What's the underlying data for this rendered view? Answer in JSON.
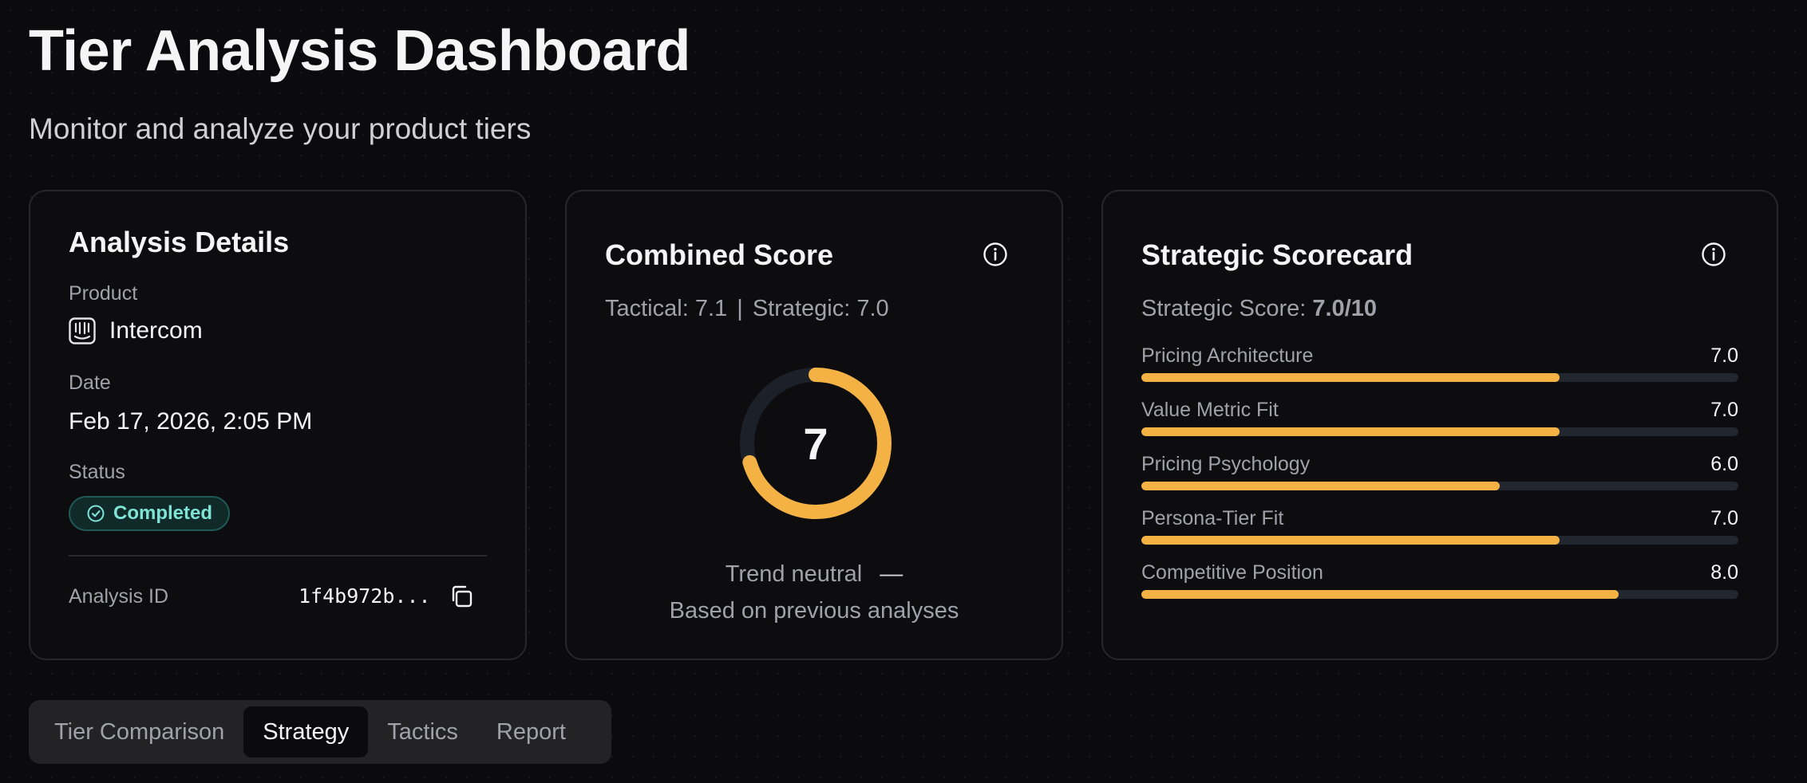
{
  "page": {
    "title": "Tier Analysis Dashboard",
    "subtitle": "Monitor and analyze your product tiers"
  },
  "details": {
    "title": "Analysis Details",
    "product_label": "Product",
    "product_name": "Intercom",
    "product_icon": "intercom-logo-icon",
    "date_label": "Date",
    "date_value": "Feb 17, 2026, 2:05 PM",
    "status_label": "Status",
    "status_value": "Completed",
    "status_color": "#7fe3d6",
    "analysis_id_label": "Analysis ID",
    "analysis_id_value": "1f4b972b...",
    "copy_icon": "copy-icon"
  },
  "combined": {
    "title": "Combined Score",
    "info_icon": "info-icon",
    "tactical_text": "Tactical: 7.1",
    "separator": "|",
    "strategic_text": "Strategic: 7.0",
    "score": "7",
    "score_max": 10,
    "score_value": 7.05,
    "gauge_color": "#f4b244",
    "trend_text": "Trend neutral",
    "trend_symbol": "—",
    "trend_note": "Based on previous analyses"
  },
  "scorecard": {
    "title": "Strategic Scorecard",
    "info_icon": "info-icon",
    "score_prefix": "Strategic Score: ",
    "score_value": "7.0/10",
    "bar_color": "#f4b244",
    "metrics": [
      {
        "label": "Pricing Architecture",
        "value": "7.0",
        "fraction": 0.7
      },
      {
        "label": "Value Metric Fit",
        "value": "7.0",
        "fraction": 0.7
      },
      {
        "label": "Pricing Psychology",
        "value": "6.0",
        "fraction": 0.6
      },
      {
        "label": "Persona-Tier Fit",
        "value": "7.0",
        "fraction": 0.7
      },
      {
        "label": "Competitive Position",
        "value": "8.0",
        "fraction": 0.8
      }
    ]
  },
  "tabs": [
    {
      "label": "Tier Comparison",
      "active": false
    },
    {
      "label": "Strategy",
      "active": true
    },
    {
      "label": "Tactics",
      "active": false
    },
    {
      "label": "Report",
      "active": false
    }
  ]
}
